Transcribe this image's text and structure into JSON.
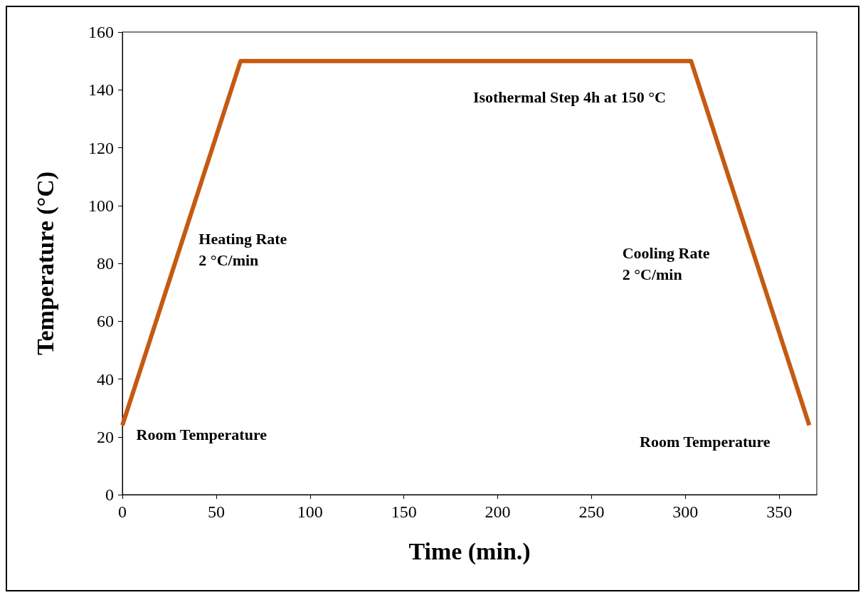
{
  "chart_data": {
    "type": "line",
    "xlabel": "Time (min.)",
    "ylabel": "Temperature (°C)",
    "x": [
      0,
      63,
      303,
      366
    ],
    "series": [
      {
        "color": "#c55a11",
        "values": [
          24,
          150,
          150,
          24
        ]
      }
    ],
    "xlim": [
      0,
      370
    ],
    "xticks": [
      0,
      50,
      100,
      150,
      200,
      250,
      300,
      350
    ],
    "ylim": [
      0,
      160
    ],
    "yticks": [
      0,
      20,
      40,
      60,
      80,
      100,
      120,
      140,
      160
    ],
    "grid": false,
    "marker": "none",
    "line_style": "solid",
    "annotations": [
      "Isothermal Step 4h at 150 °C",
      "Heating Rate\n2 °C/min",
      "Room Temperature",
      "Cooling Rate\n2 °C/min",
      "Room Temperature"
    ]
  }
}
